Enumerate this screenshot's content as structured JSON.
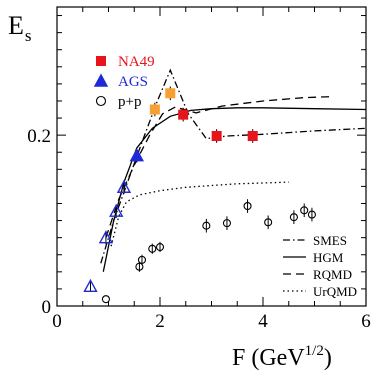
{
  "chart_data": {
    "type": "scatter",
    "xlabel": "F (GeV",
    "xlabel_exp": "1/2",
    "xlabel_close": ")",
    "ylabel": "E",
    "ylabel_sub": "s",
    "xlim": [
      0,
      6
    ],
    "ylim": [
      0,
      0.35
    ],
    "x_ticks": [
      0,
      2,
      4,
      6
    ],
    "y_ticks": [
      0,
      0.2
    ],
    "x_tick_labels": [
      "0",
      "2",
      "4",
      "6"
    ],
    "y_tick_labels": [
      "0",
      "0.2"
    ],
    "legend_points": [
      {
        "name": "NA49",
        "marker": "square-filled",
        "color": "#e8141b"
      },
      {
        "name": "AGS",
        "marker": "triangle-filled",
        "color": "#1f2ad6"
      },
      {
        "name": "p+p",
        "marker": "circle-open",
        "color": "#000000"
      }
    ],
    "legend_lines": [
      {
        "name": "SMES",
        "dash": "dashdot"
      },
      {
        "name": "HGM",
        "dash": "solid"
      },
      {
        "name": "RQMD",
        "dash": "dashed"
      },
      {
        "name": "UrQMD",
        "dash": "dotted"
      }
    ],
    "series": [
      {
        "name": "NA49",
        "marker": "square-filled",
        "color": "#e8141b",
        "points": [
          [
            2.45,
            0.224,
            0.008
          ],
          [
            3.1,
            0.199,
            0.008
          ],
          [
            3.8,
            0.199,
            0.008
          ]
        ]
      },
      {
        "name": "NA49 (orange)",
        "marker": "square-filled",
        "color": "#f5a030",
        "points": [
          [
            1.9,
            0.23,
            0.008
          ],
          [
            2.2,
            0.249,
            0.008
          ]
        ]
      },
      {
        "name": "AGS filled",
        "marker": "triangle-filled",
        "color": "#1f2ad6",
        "points": [
          [
            1.55,
            0.176,
            0.008
          ]
        ]
      },
      {
        "name": "AGS",
        "marker": "triangle-open",
        "color": "#1f2ad6",
        "points": [
          [
            0.65,
            0.023,
            0.006
          ],
          [
            0.95,
            0.08,
            0.008
          ],
          [
            1.15,
            0.111,
            0.008
          ],
          [
            1.3,
            0.139,
            0.008
          ]
        ]
      },
      {
        "name": "p+p",
        "marker": "circle-open",
        "color": "#000000",
        "points": [
          [
            0.95,
            0.008,
            0.0
          ],
          [
            1.6,
            0.046,
            0.006
          ],
          [
            1.65,
            0.054,
            0.006
          ],
          [
            1.85,
            0.067,
            0.006
          ],
          [
            2.0,
            0.069,
            0.006
          ],
          [
            2.9,
            0.094,
            0.008
          ],
          [
            3.3,
            0.097,
            0.008
          ],
          [
            3.7,
            0.117,
            0.008
          ],
          [
            4.1,
            0.098,
            0.008
          ],
          [
            4.6,
            0.104,
            0.008
          ],
          [
            4.8,
            0.112,
            0.008
          ],
          [
            4.95,
            0.107,
            0.008
          ]
        ]
      }
    ],
    "curves": [
      {
        "name": "SMES",
        "dash": "dashdot",
        "points": [
          [
            0.85,
            0.05
          ],
          [
            1.1,
            0.1
          ],
          [
            1.4,
            0.15
          ],
          [
            1.7,
            0.2
          ],
          [
            1.95,
            0.24
          ],
          [
            2.2,
            0.276
          ],
          [
            2.55,
            0.225
          ],
          [
            2.9,
            0.196
          ],
          [
            3.3,
            0.199
          ],
          [
            4.0,
            0.201
          ],
          [
            5.0,
            0.205
          ],
          [
            6.0,
            0.208
          ]
        ]
      },
      {
        "name": "HGM",
        "dash": "solid",
        "points": [
          [
            0.9,
            0.04
          ],
          [
            1.1,
            0.1
          ],
          [
            1.3,
            0.145
          ],
          [
            1.55,
            0.185
          ],
          [
            1.85,
            0.208
          ],
          [
            2.2,
            0.222
          ],
          [
            2.6,
            0.229
          ],
          [
            3.0,
            0.231
          ],
          [
            3.5,
            0.232
          ],
          [
            4.0,
            0.232
          ],
          [
            5.0,
            0.231
          ],
          [
            6.0,
            0.23
          ]
        ]
      },
      {
        "name": "RQMD",
        "dash": "dashed",
        "points": [
          [
            0.95,
            0.08
          ],
          [
            1.2,
            0.125
          ],
          [
            1.5,
            0.165
          ],
          [
            1.8,
            0.2
          ],
          [
            2.05,
            0.225
          ],
          [
            2.3,
            0.233
          ],
          [
            2.7,
            0.226
          ],
          [
            3.2,
            0.234
          ],
          [
            4.0,
            0.24
          ],
          [
            4.8,
            0.244
          ],
          [
            5.3,
            0.245
          ]
        ]
      },
      {
        "name": "UrQMD",
        "dash": "dotted",
        "points": [
          [
            1.05,
            0.07
          ],
          [
            1.2,
            0.105
          ],
          [
            1.35,
            0.122
          ],
          [
            1.6,
            0.13
          ],
          [
            2.0,
            0.135
          ],
          [
            2.5,
            0.139
          ],
          [
            3.0,
            0.141
          ],
          [
            3.5,
            0.143
          ],
          [
            4.0,
            0.144
          ],
          [
            4.5,
            0.145
          ]
        ]
      }
    ]
  }
}
